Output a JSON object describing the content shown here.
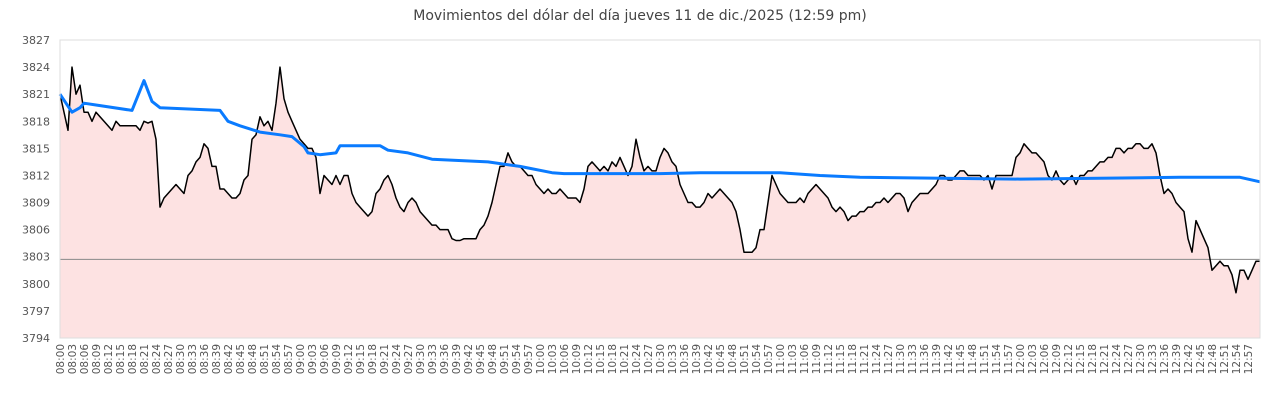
{
  "chart_data": {
    "type": "line",
    "title": "Movimientos del dólar del día jueves 11 de dic./2025 (12:59 pm)",
    "xlabel": "",
    "ylabel": "",
    "ylim": [
      3794,
      3827
    ],
    "yticks": [
      3794,
      3797,
      3800,
      3803,
      3806,
      3809,
      3812,
      3815,
      3818,
      3821,
      3824,
      3827
    ],
    "x_start": "08:00",
    "x_minutes": 300,
    "x_tick_step_minutes": 3,
    "reference_line": 3802.7,
    "colors": {
      "price": "#000000",
      "fill": "#fde2e2",
      "average": "#0a7bff",
      "reference": "#888888"
    },
    "series": [
      {
        "name": "price",
        "x_step_minutes": 1,
        "values": [
          3821,
          3819,
          3817,
          3824,
          3821,
          3822,
          3819,
          3819,
          3818,
          3819,
          3818.5,
          3818,
          3817.5,
          3817,
          3818,
          3817.5,
          3817.5,
          3817.5,
          3817.5,
          3817.5,
          3817,
          3818,
          3817.8,
          3818,
          3816,
          3808.5,
          3809.5,
          3810,
          3810.5,
          3811,
          3810.5,
          3810,
          3812,
          3812.5,
          3813.5,
          3814,
          3815.5,
          3815,
          3813,
          3813,
          3810.5,
          3810.5,
          3810,
          3809.5,
          3809.5,
          3810,
          3811.5,
          3812,
          3816,
          3816.5,
          3818.5,
          3817.5,
          3818,
          3817,
          3820,
          3824,
          3820.5,
          3819,
          3818,
          3817,
          3816,
          3815.5,
          3815,
          3815,
          3814,
          3810,
          3812,
          3811.5,
          3811,
          3812,
          3811,
          3812,
          3812,
          3810,
          3809,
          3808.5,
          3808,
          3807.5,
          3808,
          3810,
          3810.5,
          3811.5,
          3812,
          3811,
          3809.5,
          3808.5,
          3808,
          3809,
          3809.5,
          3809,
          3808,
          3807.5,
          3807,
          3806.5,
          3806.5,
          3806,
          3806,
          3806,
          3805,
          3804.8,
          3804.8,
          3805,
          3805,
          3805,
          3805,
          3806,
          3806.5,
          3807.5,
          3809,
          3811,
          3813,
          3813,
          3814.5,
          3813.5,
          3813,
          3813,
          3812.5,
          3812,
          3812,
          3811,
          3810.5,
          3810,
          3810.5,
          3810,
          3810,
          3810.5,
          3810,
          3809.5,
          3809.5,
          3809.5,
          3809,
          3810.5,
          3813,
          3813.5,
          3813,
          3812.5,
          3813,
          3812.5,
          3813.5,
          3813,
          3814,
          3813,
          3812,
          3813,
          3816,
          3814,
          3812.5,
          3813,
          3812.5,
          3812.5,
          3814,
          3815,
          3814.5,
          3813.5,
          3813,
          3811,
          3810,
          3809,
          3809,
          3808.5,
          3808.5,
          3809,
          3810,
          3809.5,
          3810,
          3810.5,
          3810,
          3809.5,
          3809,
          3808,
          3806,
          3803.5,
          3803.5,
          3803.5,
          3804,
          3806,
          3806,
          3809,
          3812,
          3811,
          3810,
          3809.5,
          3809,
          3809,
          3809,
          3809.5,
          3809,
          3810,
          3810.5,
          3811,
          3810.5,
          3810,
          3809.5,
          3808.5,
          3808,
          3808.5,
          3808,
          3807,
          3807.5,
          3807.5,
          3808,
          3808,
          3808.5,
          3808.5,
          3809,
          3809,
          3809.5,
          3809,
          3809.5,
          3810,
          3810,
          3809.5,
          3808,
          3809,
          3809.5,
          3810,
          3810,
          3810,
          3810.5,
          3811,
          3812,
          3812,
          3811.5,
          3811.5,
          3812,
          3812.5,
          3812.5,
          3812,
          3812,
          3812,
          3812,
          3811.5,
          3812,
          3810.5,
          3812,
          3812,
          3812,
          3812,
          3812,
          3814,
          3814.5,
          3815.5,
          3815,
          3814.5,
          3814.5,
          3814,
          3813.5,
          3812,
          3811.5,
          3812.5,
          3811.5,
          3811,
          3811.5,
          3812,
          3811,
          3812,
          3812,
          3812.5,
          3812.5,
          3813,
          3813.5,
          3813.5,
          3814,
          3814,
          3815,
          3815,
          3814.5,
          3815,
          3815,
          3815.5,
          3815.5,
          3815,
          3815,
          3815.5,
          3814.5,
          3812,
          3810,
          3810.5,
          3810,
          3809,
          3808.5,
          3808,
          3805,
          3803.5,
          3807,
          3806,
          3805,
          3804,
          3801.5,
          3802,
          3802.5,
          3802,
          3802,
          3801,
          3799,
          3801.5,
          3801.5,
          3800.5,
          3801.5,
          3802.5,
          3802.5
        ]
      },
      {
        "name": "average",
        "points": [
          [
            0,
            3821
          ],
          [
            3,
            3819
          ],
          [
            5,
            3819.5
          ],
          [
            6,
            3820
          ],
          [
            9,
            3819.8
          ],
          [
            18,
            3819.2
          ],
          [
            21,
            3822.5
          ],
          [
            23,
            3820.2
          ],
          [
            25,
            3819.5
          ],
          [
            40,
            3819.2
          ],
          [
            42,
            3818
          ],
          [
            45,
            3817.5
          ],
          [
            50,
            3816.8
          ],
          [
            55,
            3816.5
          ],
          [
            58,
            3816.3
          ],
          [
            61,
            3815.2
          ],
          [
            62,
            3814.5
          ],
          [
            65,
            3814.3
          ],
          [
            69,
            3814.5
          ],
          [
            70,
            3815.3
          ],
          [
            80,
            3815.3
          ],
          [
            82,
            3814.8
          ],
          [
            87,
            3814.5
          ],
          [
            93,
            3813.8
          ],
          [
            107,
            3813.5
          ],
          [
            115,
            3813
          ],
          [
            123,
            3812.3
          ],
          [
            126,
            3812.2
          ],
          [
            150,
            3812.2
          ],
          [
            160,
            3812.3
          ],
          [
            180,
            3812.3
          ],
          [
            190,
            3812
          ],
          [
            200,
            3811.8
          ],
          [
            240,
            3811.6
          ],
          [
            280,
            3811.8
          ],
          [
            295,
            3811.8
          ],
          [
            300,
            3811.3
          ]
        ]
      }
    ]
  }
}
